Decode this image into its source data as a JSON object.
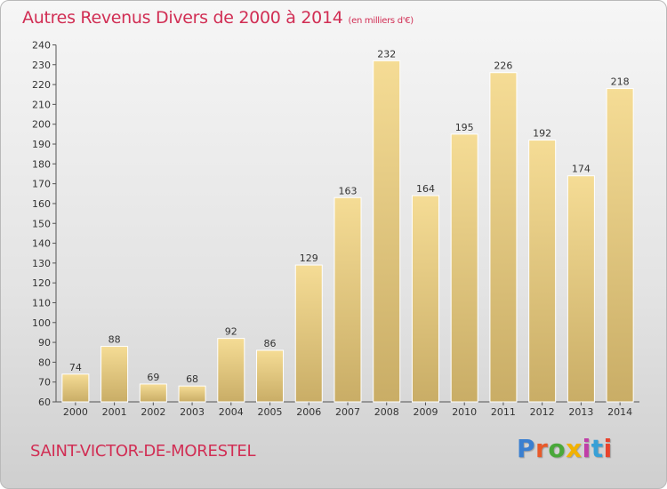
{
  "title": "Autres Revenus Divers de 2000 à 2014",
  "unit": "(en milliers d'€)",
  "commune": "SAINT-VICTOR-DE-MORESTEL",
  "brand": "Proxiti",
  "brand_colors": [
    "#3a7fd0",
    "#e85a2a",
    "#4aa83a",
    "#f2b200",
    "#c03ea8",
    "#38a0d6",
    "#e8432c"
  ],
  "colors": {
    "bar_light": "#f5dc95",
    "bar_dark": "#c9ad66",
    "title": "#d12e54"
  },
  "chart_data": {
    "type": "bar",
    "title": "Autres Revenus Divers de 2000 à 2014",
    "categories": [
      "2000",
      "2001",
      "2002",
      "2003",
      "2004",
      "2005",
      "2006",
      "2007",
      "2008",
      "2009",
      "2010",
      "2011",
      "2012",
      "2013",
      "2014"
    ],
    "values": [
      74,
      88,
      69,
      68,
      92,
      86,
      129,
      163,
      232,
      164,
      195,
      226,
      192,
      174,
      218
    ],
    "ylim": [
      60,
      240
    ],
    "ytick_step": 10,
    "grid": false,
    "legend": "none",
    "data_labels": true
  }
}
